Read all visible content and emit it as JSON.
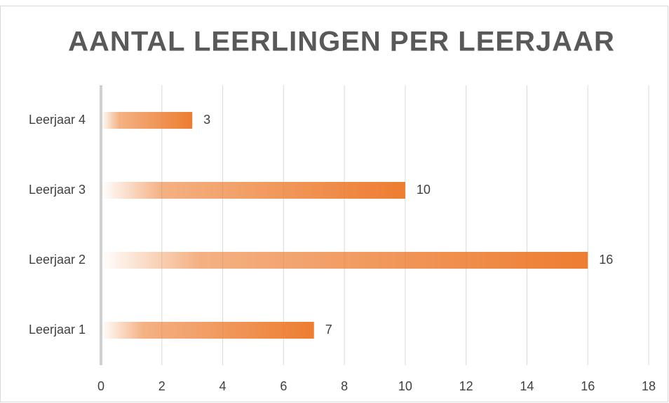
{
  "chart_data": {
    "type": "bar",
    "orientation": "horizontal",
    "title": "AANTAL LEERLINGEN PER LEERJAAR",
    "categories": [
      "Leerjaar 1",
      "Leerjaar 2",
      "Leerjaar 3",
      "Leerjaar 4"
    ],
    "values": [
      7,
      16,
      10,
      3
    ],
    "color": "#ed7d31",
    "xlim": [
      0,
      18
    ],
    "xticks": [
      0,
      2,
      4,
      6,
      8,
      10,
      12,
      14,
      16,
      18
    ],
    "grid": true
  }
}
